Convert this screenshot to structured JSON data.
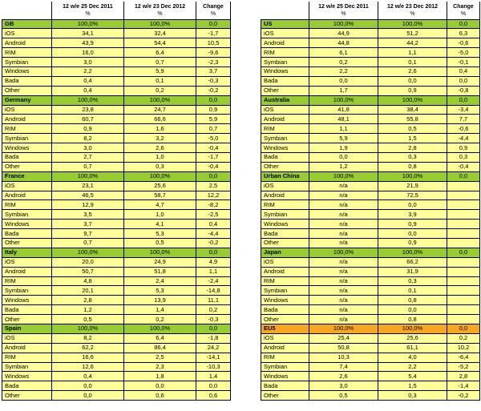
{
  "headers": {
    "col1": "12 w/e 25 Dec 2011",
    "col2": "12 w/e 23 Dec 2012",
    "col3": "Change",
    "unit": "%"
  },
  "left": [
    {
      "region": "GB",
      "v2011": "100,0%",
      "v2012": "100,0%",
      "change": "0,0",
      "highlight": false,
      "rows": [
        {
          "name": "iOS",
          "v2011": "34,1",
          "v2012": "32,4",
          "change": "-1,7"
        },
        {
          "name": "Android",
          "v2011": "43,9",
          "v2012": "54,4",
          "change": "10,5"
        },
        {
          "name": "RIM",
          "v2011": "16,0",
          "v2012": "6,4",
          "change": "-9,6"
        },
        {
          "name": "Symbian",
          "v2011": "3,0",
          "v2012": "0,7",
          "change": "-2,3"
        },
        {
          "name": "Windows",
          "v2011": "2,2",
          "v2012": "5,9",
          "change": "3,7"
        },
        {
          "name": "Bada",
          "v2011": "0,4",
          "v2012": "0,1",
          "change": "-0,3"
        },
        {
          "name": "Other",
          "v2011": "0,4",
          "v2012": "0,2",
          "change": "-0,2"
        }
      ]
    },
    {
      "region": "Germany",
      "v2011": "100,0%",
      "v2012": "100,0%",
      "change": "0,0",
      "highlight": false,
      "rows": [
        {
          "name": "iOS",
          "v2011": "23,8",
          "v2012": "24,7",
          "change": "0,9"
        },
        {
          "name": "Android",
          "v2011": "60,7",
          "v2012": "66,6",
          "change": "5,9"
        },
        {
          "name": "RIM",
          "v2011": "0,9",
          "v2012": "1,6",
          "change": "0,7"
        },
        {
          "name": "Symbian",
          "v2011": "8,2",
          "v2012": "3,2",
          "change": "-5,0"
        },
        {
          "name": "Windows",
          "v2011": "3,0",
          "v2012": "2,6",
          "change": "-0,4"
        },
        {
          "name": "Bada",
          "v2011": "2,7",
          "v2012": "1,0",
          "change": "-1,7"
        },
        {
          "name": "Other",
          "v2011": "0,7",
          "v2012": "0,3",
          "change": "-0,4"
        }
      ]
    },
    {
      "region": "France",
      "v2011": "100,0%",
      "v2012": "100,0%",
      "change": "0,0",
      "highlight": false,
      "rows": [
        {
          "name": "iOS",
          "v2011": "23,1",
          "v2012": "25,6",
          "change": "2,5"
        },
        {
          "name": "Android",
          "v2011": "46,5",
          "v2012": "58,7",
          "change": "12,2"
        },
        {
          "name": "RIM",
          "v2011": "12,9",
          "v2012": "4,7",
          "change": "-8,2"
        },
        {
          "name": "Symbian",
          "v2011": "3,5",
          "v2012": "1,0",
          "change": "-2,5"
        },
        {
          "name": "Windows",
          "v2011": "3,7",
          "v2012": "4,1",
          "change": "0,4"
        },
        {
          "name": "Bada",
          "v2011": "9,7",
          "v2012": "5,3",
          "change": "-4,4"
        },
        {
          "name": "Other",
          "v2011": "0,7",
          "v2012": "0,5",
          "change": "-0,2"
        }
      ]
    },
    {
      "region": "Italy",
      "v2011": "100,0%",
      "v2012": "100,0%",
      "change": "0,0",
      "highlight": false,
      "rows": [
        {
          "name": "iOS",
          "v2011": "20,0",
          "v2012": "24,9",
          "change": "4,9"
        },
        {
          "name": "Android",
          "v2011": "50,7",
          "v2012": "51,8",
          "change": "1,1"
        },
        {
          "name": "RIM",
          "v2011": "4,8",
          "v2012": "2,4",
          "change": "-2,4"
        },
        {
          "name": "Symbian",
          "v2011": "20,1",
          "v2012": "5,3",
          "change": "-14,8"
        },
        {
          "name": "Windows",
          "v2011": "2,8",
          "v2012": "13,9",
          "change": "11,1"
        },
        {
          "name": "Bada",
          "v2011": "1,2",
          "v2012": "1,4",
          "change": "0,2"
        },
        {
          "name": "Other",
          "v2011": "0,5",
          "v2012": "0,2",
          "change": "-0,3"
        }
      ]
    },
    {
      "region": "Spain",
      "v2011": "100,0%",
      "v2012": "100,0%",
      "change": "0,0",
      "highlight": false,
      "rows": [
        {
          "name": "iOS",
          "v2011": "8,2",
          "v2012": "6,4",
          "change": "-1,8"
        },
        {
          "name": "Android",
          "v2011": "62,2",
          "v2012": "86,4",
          "change": "24,2"
        },
        {
          "name": "RIM",
          "v2011": "16,6",
          "v2012": "2,5",
          "change": "-14,1"
        },
        {
          "name": "Symbian",
          "v2011": "12,6",
          "v2012": "2,3",
          "change": "-10,3"
        },
        {
          "name": "Windows",
          "v2011": "0,4",
          "v2012": "1,8",
          "change": "1,4"
        },
        {
          "name": "Bada",
          "v2011": "0,0",
          "v2012": "0,0",
          "change": "0,0"
        },
        {
          "name": "Other",
          "v2011": "0,0",
          "v2012": "0,6",
          "change": "0,6"
        }
      ]
    }
  ],
  "right": [
    {
      "region": "US",
      "v2011": "100,0%",
      "v2012": "100,0%",
      "change": "0,0",
      "highlight": false,
      "rows": [
        {
          "name": "iOS",
          "v2011": "44,9",
          "v2012": "51,2",
          "change": "6,3"
        },
        {
          "name": "Android",
          "v2011": "44,8",
          "v2012": "44,2",
          "change": "-0,6"
        },
        {
          "name": "RIM",
          "v2011": "6,1",
          "v2012": "1,1",
          "change": "-5,0"
        },
        {
          "name": "Symbian",
          "v2011": "0,2",
          "v2012": "0,1",
          "change": "-0,1"
        },
        {
          "name": "Windows",
          "v2011": "2,2",
          "v2012": "2,6",
          "change": "0,4"
        },
        {
          "name": "Bada",
          "v2011": "0,0",
          "v2012": "0,0",
          "change": "0,0"
        },
        {
          "name": "Other",
          "v2011": "1,7",
          "v2012": "0,9",
          "change": "-0,8"
        }
      ]
    },
    {
      "region": "Australia",
      "v2011": "100,0%",
      "v2012": "100,0%",
      "change": "0,0",
      "highlight": false,
      "rows": [
        {
          "name": "iOS",
          "v2011": "41,8",
          "v2012": "38,4",
          "change": "-3,4"
        },
        {
          "name": "Android",
          "v2011": "48,1",
          "v2012": "55,8",
          "change": "7,7"
        },
        {
          "name": "RIM",
          "v2011": "1,1",
          "v2012": "0,5",
          "change": "-0,6"
        },
        {
          "name": "Symbian",
          "v2011": "5,9",
          "v2012": "1,5",
          "change": "-4,4"
        },
        {
          "name": "Windows",
          "v2011": "1,9",
          "v2012": "2,8",
          "change": "0,9"
        },
        {
          "name": "Bada",
          "v2011": "0,0",
          "v2012": "0,3",
          "change": "0,3"
        },
        {
          "name": "Other",
          "v2011": "1,2",
          "v2012": "0,8",
          "change": "-0,4"
        }
      ]
    },
    {
      "region": "Urban China",
      "v2011": "100,0%",
      "v2012": "100,0%",
      "change": "0,0",
      "highlight": false,
      "rows": [
        {
          "name": "iOS",
          "v2011": "n/a",
          "v2012": "21,9",
          "change": ""
        },
        {
          "name": "Android",
          "v2011": "n/a",
          "v2012": "72,5",
          "change": ""
        },
        {
          "name": "RIM",
          "v2011": "n/a",
          "v2012": "0,0",
          "change": ""
        },
        {
          "name": "Symbian",
          "v2011": "n/a",
          "v2012": "3,9",
          "change": ""
        },
        {
          "name": "Windows",
          "v2011": "n/a",
          "v2012": "0,9",
          "change": ""
        },
        {
          "name": "Bada",
          "v2011": "n/a",
          "v2012": "0,0",
          "change": ""
        },
        {
          "name": "Other",
          "v2011": "n/a",
          "v2012": "0,9",
          "change": ""
        }
      ]
    },
    {
      "region": "Japan",
      "v2011": "100,0%",
      "v2012": "100,0%",
      "change": "0,0",
      "highlight": false,
      "rows": [
        {
          "name": "iOS",
          "v2011": "n/a",
          "v2012": "66,2",
          "change": ""
        },
        {
          "name": "Android",
          "v2011": "n/a",
          "v2012": "31,9",
          "change": ""
        },
        {
          "name": "RIM",
          "v2011": "n/a",
          "v2012": "0,3",
          "change": ""
        },
        {
          "name": "Symbian",
          "v2011": "n/a",
          "v2012": "0,1",
          "change": ""
        },
        {
          "name": "Windows",
          "v2011": "n/a",
          "v2012": "0,8",
          "change": ""
        },
        {
          "name": "Bada",
          "v2011": "n/a",
          "v2012": "0,0",
          "change": ""
        },
        {
          "name": "Other",
          "v2011": "n/a",
          "v2012": "0,8",
          "change": ""
        }
      ]
    },
    {
      "region": "EU5",
      "v2011": "100,0%",
      "v2012": "100,0%",
      "change": "0,0",
      "highlight": true,
      "rows": [
        {
          "name": "iOS",
          "v2011": "25,4",
          "v2012": "25,6",
          "change": "0,2"
        },
        {
          "name": "Android",
          "v2011": "50,8",
          "v2012": "61,1",
          "change": "10,2"
        },
        {
          "name": "RIM",
          "v2011": "10,3",
          "v2012": "4,0",
          "change": "-6,4"
        },
        {
          "name": "Symbian",
          "v2011": "7,4",
          "v2012": "2,2",
          "change": "-5,2"
        },
        {
          "name": "Windows",
          "v2011": "2,6",
          "v2012": "5,4",
          "change": "2,8"
        },
        {
          "name": "Bada",
          "v2011": "3,0",
          "v2012": "1,5",
          "change": "-1,4"
        },
        {
          "name": "Other",
          "v2011": "0,5",
          "v2012": "0,3",
          "change": "-0,2"
        }
      ]
    }
  ],
  "colors": {
    "section_green": "#99cc33",
    "section_orange": "#f5a623",
    "row_yellow": "#ffff99"
  }
}
